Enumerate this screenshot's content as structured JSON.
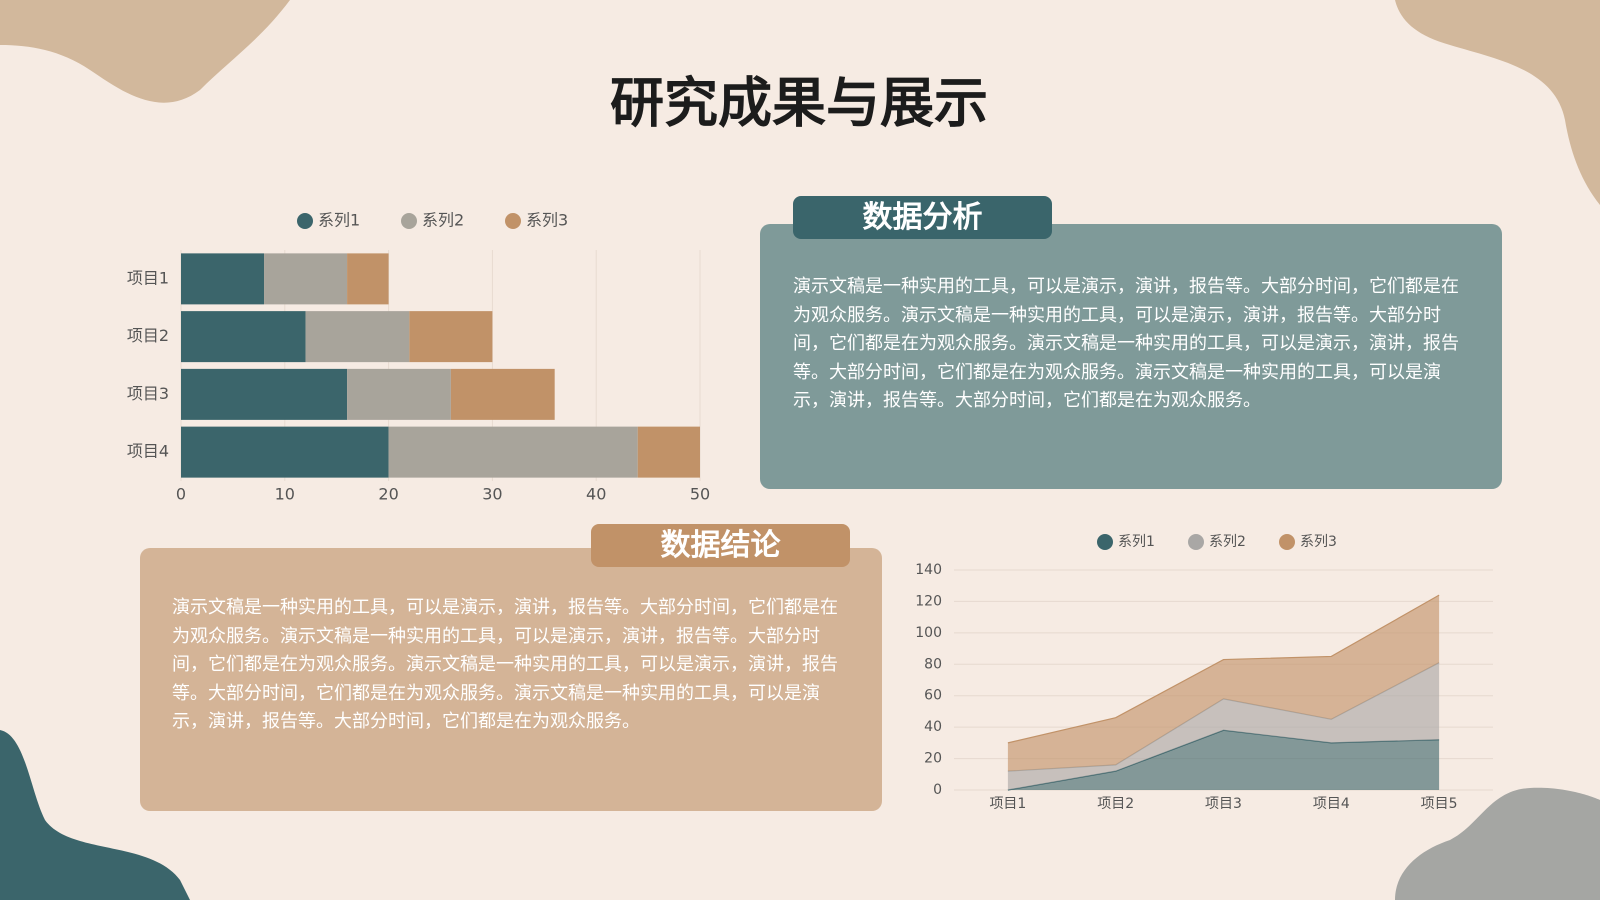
{
  "title": "研究成果与展示",
  "chart_data": [
    {
      "type": "bar",
      "orientation": "horizontal",
      "stacked": true,
      "categories": [
        "项目1",
        "项目2",
        "项目3",
        "项目4"
      ],
      "series": [
        {
          "name": "系列1",
          "color": "#3b656b",
          "values": [
            8,
            12,
            16,
            20
          ]
        },
        {
          "name": "系列2",
          "color": "#a8a49b",
          "values": [
            8,
            10,
            10,
            24
          ]
        },
        {
          "name": "系列3",
          "color": "#c19268",
          "values": [
            4,
            8,
            10,
            6
          ]
        }
      ],
      "xlim": [
        0,
        50
      ],
      "xticks": [
        0,
        10,
        20,
        30,
        40,
        50
      ],
      "grid": true,
      "legend": "top"
    },
    {
      "type": "area",
      "stacked": true,
      "categories": [
        "项目1",
        "项目2",
        "项目3",
        "项目4",
        "项目5"
      ],
      "series": [
        {
          "name": "系列1",
          "color": "#3b656b",
          "values": [
            0,
            12,
            38,
            30,
            32
          ]
        },
        {
          "name": "系列2",
          "color": "#a9a7a5",
          "values": [
            12,
            4,
            20,
            15,
            49
          ]
        },
        {
          "name": "系列3",
          "color": "#c19268",
          "values": [
            18,
            30,
            25,
            40,
            43
          ]
        }
      ],
      "ylim": [
        0,
        140
      ],
      "yticks": [
        0,
        20,
        40,
        60,
        80,
        100,
        120,
        140
      ],
      "grid": true,
      "legend": "top"
    }
  ],
  "panels": [
    {
      "heading": "数据分析",
      "text": "演示文稿是一种实用的工具，可以是演示，演讲，报告等。大部分时间，它们都是在为观众服务。演示文稿是一种实用的工具，可以是演示，演讲，报告等。大部分时间，它们都是在为观众服务。演示文稿是一种实用的工具，可以是演示，演讲，报告等。大部分时间，它们都是在为观众服务。演示文稿是一种实用的工具，可以是演示，演讲，报告等。大部分时间，它们都是在为观众服务。"
    },
    {
      "heading": "数据结论",
      "text": "演示文稿是一种实用的工具，可以是演示，演讲，报告等。大部分时间，它们都是在为观众服务。演示文稿是一种实用的工具，可以是演示，演讲，报告等。大部分时间，它们都是在为观众服务。演示文稿是一种实用的工具，可以是演示，演讲，报告等。大部分时间，它们都是在为观众服务。演示文稿是一种实用的工具，可以是演示，演讲，报告等。大部分时间，它们都是在为观众服务。"
    }
  ]
}
